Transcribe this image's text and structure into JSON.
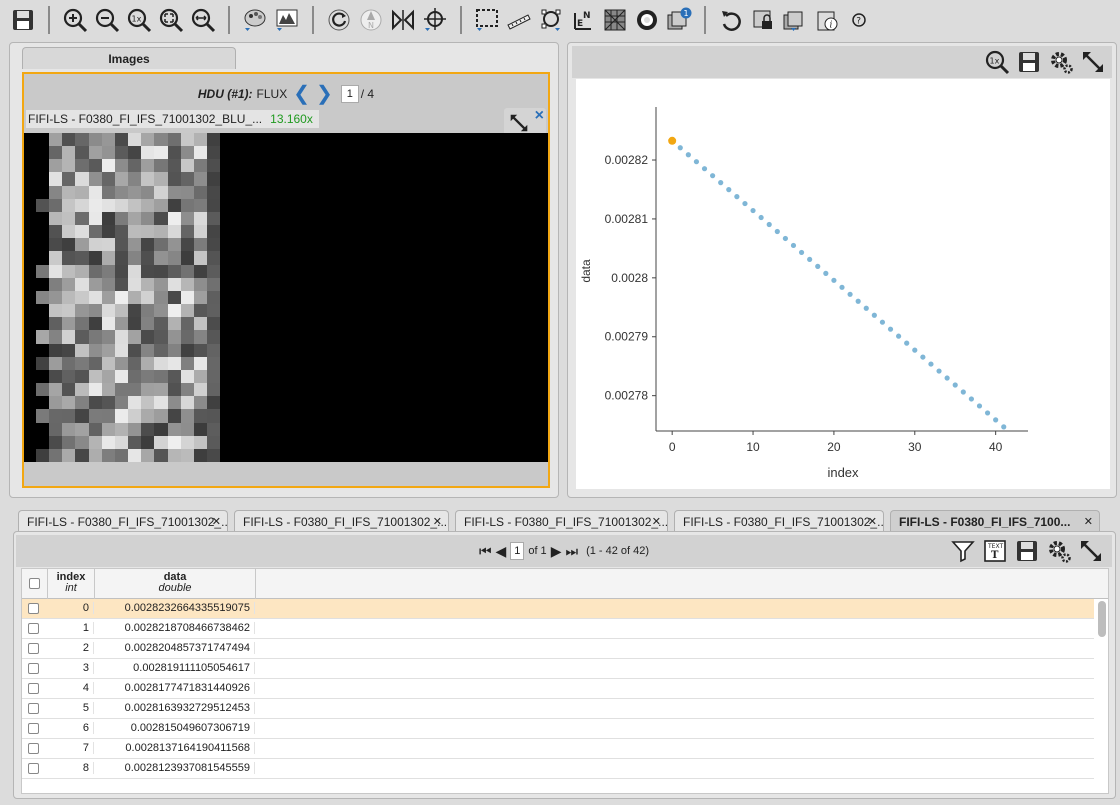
{
  "toolbar": {
    "icons": [
      "save-icon",
      "zoom-in-icon",
      "zoom-out-icon",
      "zoom-1x-icon",
      "zoom-fit-icon",
      "zoom-fill-icon",
      "color-palette-icon",
      "stretch-icon",
      "rotate-icon",
      "north-icon",
      "flip-icon",
      "recenter-icon",
      "select-icon",
      "ruler-icon",
      "marker-icon",
      "north-east-icon",
      "grid-icon",
      "dss-icon",
      "layers-icon",
      "undo-icon",
      "lock-icon",
      "restore-icon",
      "info-icon",
      "help-icon"
    ],
    "layers_badge": "1"
  },
  "image_panel": {
    "tab_label": "Images",
    "hdu_label": "HDU (#1):",
    "hdu_name": "FLUX",
    "page_value": "1",
    "page_total": "/ 4",
    "image_name": "FIFI-LS - F0380_FI_IFS_71001302_BLU_...",
    "zoom_level": "13.160x",
    "close_glyph": "×"
  },
  "chart_data": {
    "type": "scatter",
    "xlabel": "index",
    "ylabel": "data",
    "xlim": [
      -2,
      44
    ],
    "ylim": [
      0.002774,
      0.002829
    ],
    "xticks": [
      "0",
      "10",
      "20",
      "30",
      "40"
    ],
    "yticks": [
      "0.00282",
      "0.00281",
      "0.0028",
      "0.00279",
      "0.00278"
    ],
    "x": [
      0,
      1,
      2,
      3,
      4,
      5,
      6,
      7,
      8,
      9,
      10,
      11,
      12,
      13,
      14,
      15,
      16,
      17,
      18,
      19,
      20,
      21,
      22,
      23,
      24,
      25,
      26,
      27,
      28,
      29,
      30,
      31,
      32,
      33,
      34,
      35,
      36,
      37,
      38,
      39,
      40,
      41
    ],
    "y_start": 0.0028232664,
    "y_end": 0.0027747,
    "highlight_index": 0,
    "point_color": "#7fb6d6",
    "highlight_color": "#f2a712"
  },
  "table_tabs": [
    {
      "label": "FIFI-LS - F0380_FI_IFS_71001302_...",
      "active": false
    },
    {
      "label": "FIFI-LS - F0380_FI_IFS_71001302_...",
      "active": false
    },
    {
      "label": "FIFI-LS - F0380_FI_IFS_71001302_...",
      "active": false
    },
    {
      "label": "FIFI-LS - F0380_FI_IFS_71001302_...",
      "active": false
    },
    {
      "label": "FIFI-LS - F0380_FI_IFS_7100...",
      "active": true
    }
  ],
  "table": {
    "page_value": "1",
    "page_of": "of 1",
    "range_text": "(1 - 42 of 42)",
    "columns": [
      {
        "name": "index",
        "type": "int"
      },
      {
        "name": "data",
        "type": "double"
      }
    ],
    "rows": [
      {
        "index": "0",
        "data": "0.0028232664335519075"
      },
      {
        "index": "1",
        "data": "0.0028218708466738462"
      },
      {
        "index": "2",
        "data": "0.0028204857371747494"
      },
      {
        "index": "3",
        "data": "0.002819111105054617"
      },
      {
        "index": "4",
        "data": "0.0028177471831440926"
      },
      {
        "index": "5",
        "data": "0.0028163932729512453"
      },
      {
        "index": "6",
        "data": "0.002815049607306719"
      },
      {
        "index": "7",
        "data": "0.0028137164190411568"
      },
      {
        "index": "8",
        "data": "0.0028123937081545559"
      }
    ]
  }
}
